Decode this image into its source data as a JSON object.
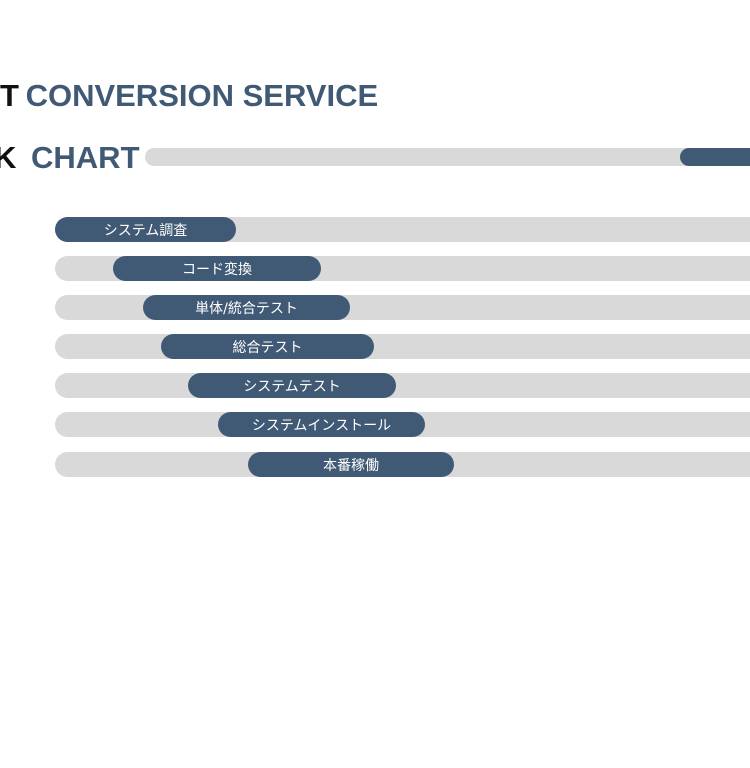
{
  "header": {
    "cut_word": "T",
    "title": "CONVERSION SERVICE"
  },
  "subheader": {
    "cut_word": "K",
    "title": "CHART"
  },
  "tasks": [
    "システム調査",
    "コード変換",
    "単体/統合テスト",
    "総合テスト",
    "システムテスト",
    "システムインストール",
    "本番稼働"
  ]
}
